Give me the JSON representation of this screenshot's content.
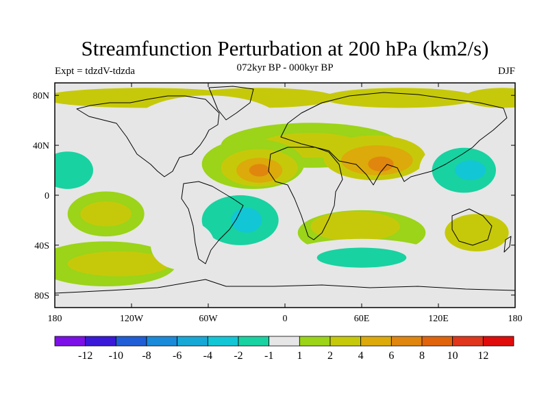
{
  "chart_data": {
    "type": "heatmap",
    "title": "Streamfunction Perturbation at 200 hPa (km2/s)",
    "left_label": "Expt = tdzdV-tdzda",
    "center_label": "072kyr BP - 000kyr BP",
    "right_label": "DJF",
    "x_ticks": [
      "180",
      "120W",
      "60W",
      "0",
      "60E",
      "120E",
      "180"
    ],
    "y_ticks": [
      "80N",
      "40N",
      "0",
      "40S",
      "80S"
    ],
    "x_range": [
      -180,
      180
    ],
    "y_range": [
      -90,
      90
    ],
    "colorbar": {
      "labels": [
        "-12",
        "-10",
        "-8",
        "-6",
        "-4",
        "-2",
        "-1",
        "1",
        "2",
        "4",
        "6",
        "8",
        "10",
        "12"
      ],
      "colors": [
        "#7d10e8",
        "#3a19d9",
        "#1f5ed6",
        "#1a8ad9",
        "#17a8d6",
        "#12c6d6",
        "#18d2a1",
        "#e6e6e6",
        "#9bd418",
        "#c6c90a",
        "#dcaa0a",
        "#e0860e",
        "#e0640c",
        "#e0361c",
        "#e00c0c"
      ]
    },
    "notable_features": [
      {
        "name": "positive max",
        "lon": -20,
        "lat": 20,
        "value": 6
      },
      {
        "name": "positive max",
        "lon": 75,
        "lat": 25,
        "value": 6
      },
      {
        "name": "negative min",
        "lon": -35,
        "lat": -20,
        "value": -4
      },
      {
        "name": "negative min",
        "lon": 140,
        "lat": 20,
        "value": -4
      },
      {
        "name": "negative min",
        "lon": -175,
        "lat": 20,
        "value": -2
      },
      {
        "name": "negative min",
        "lon": 60,
        "lat": -50,
        "value": -2
      }
    ]
  }
}
